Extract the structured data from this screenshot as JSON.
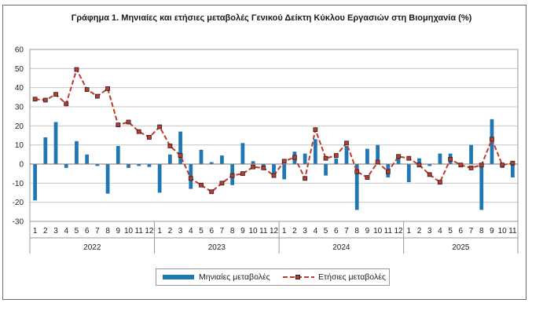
{
  "title": "Γράφημα 1. Μηνιαίες και ετήσιες μεταβολές  Γενικού Δείκτη Κύκλου Εργασιών στη Βιομηχανία (%)",
  "legend": {
    "bar_label": "Μηνιαίες μεταβολές",
    "line_label": "Ετήσιες μεταβολές"
  },
  "colors": {
    "bar": "#1f77b4",
    "line": "#c0392b",
    "marker_fill": "#c0392b",
    "marker_edge": "#222222",
    "grid": "#c8c8c8"
  },
  "chart_data": {
    "type": "bar",
    "title": "Γράφημα 1. Μηνιαίες και ετήσιες μεταβολές  Γενικού Δείκτη Κύκλου Εργασιών στη Βιομηχανία (%)",
    "ylim": [
      -30,
      60
    ],
    "yticks": [
      -30,
      -20,
      -10,
      0,
      10,
      20,
      30,
      40,
      50,
      60
    ],
    "grid": true,
    "legend_position": "bottom",
    "years": [
      {
        "label": "2022",
        "start": 0,
        "end": 11
      },
      {
        "label": "2023",
        "start": 12,
        "end": 23
      },
      {
        "label": "2024",
        "start": 24,
        "end": 35
      },
      {
        "label": "2025",
        "start": 36,
        "end": 46
      }
    ],
    "categories": [
      "1",
      "2",
      "3",
      "4",
      "5",
      "6",
      "7",
      "8",
      "9",
      "10",
      "11",
      "12",
      "1",
      "2",
      "3",
      "4",
      "5",
      "6",
      "7",
      "8",
      "9",
      "10",
      "11",
      "12",
      "1",
      "2",
      "3",
      "4",
      "5",
      "6",
      "7",
      "8",
      "9",
      "10",
      "11",
      "12",
      "1",
      "2",
      "3",
      "4",
      "5",
      "6",
      "7",
      "8",
      "9",
      "10",
      "11"
    ],
    "series": [
      {
        "name": "Μηνιαίες μεταβολές",
        "kind": "bar",
        "values": [
          -19,
          14,
          22,
          -2,
          12,
          5,
          -1,
          -15.5,
          9.5,
          -2,
          -1,
          -1.5,
          -15,
          5,
          17,
          -13,
          7.5,
          1,
          4.5,
          -11,
          11,
          1.5,
          -2,
          -7,
          -8,
          6.5,
          5.5,
          13,
          -6,
          3,
          9.5,
          -24,
          8,
          10,
          -7,
          3.5,
          -9.5,
          3,
          -1,
          5.5,
          5.5,
          -1,
          10,
          -24,
          23.5,
          -2,
          -7
        ]
      },
      {
        "name": "Ετήσιες μεταβολές",
        "kind": "line",
        "values": [
          34,
          33.5,
          36.5,
          31.5,
          49.5,
          39,
          35.5,
          39.5,
          20.5,
          22,
          17,
          14,
          19.5,
          9.5,
          4.5,
          -7.5,
          -11,
          -14.5,
          -10,
          -6,
          -5,
          -1.5,
          -2,
          -6,
          1.5,
          3.5,
          -7.5,
          18,
          3,
          4.5,
          11,
          -4,
          -7,
          1,
          -4,
          4,
          3,
          -0.5,
          -5.5,
          -9.5,
          2.5,
          -0.5,
          -2,
          -0.5,
          13,
          -0.5,
          0.5
        ]
      }
    ]
  }
}
